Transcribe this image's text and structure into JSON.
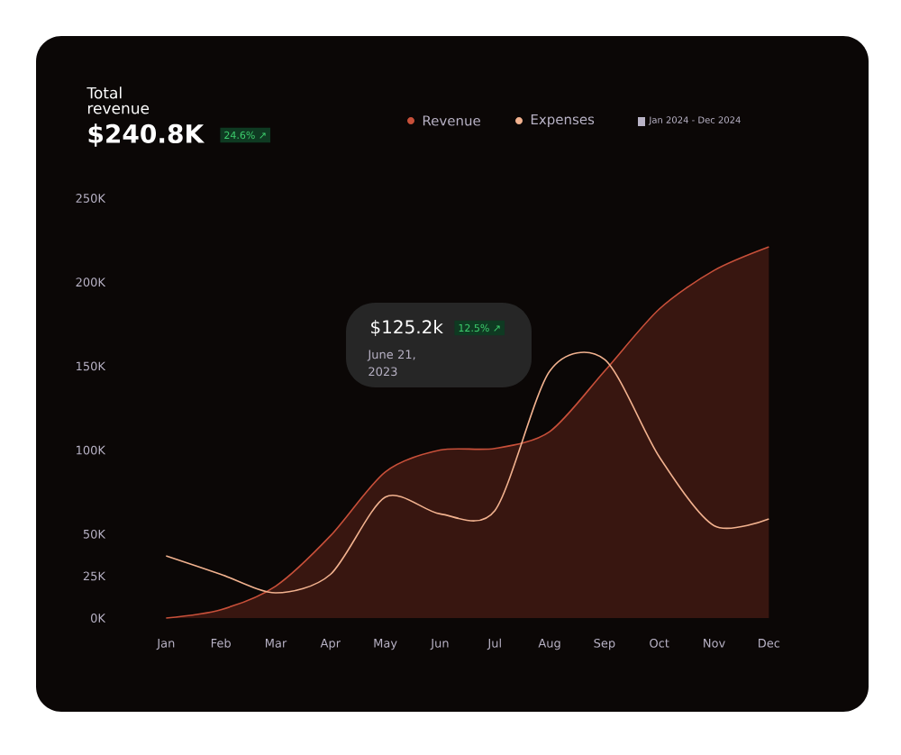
{
  "chart_data": {
    "type": "line",
    "title": "Total revenue",
    "subtitle": "$240.8K",
    "annotations": [
      "24.6% ↗",
      "$125.2k",
      "12.5% ↗",
      "June 21, 2023",
      "Jan 2024 - Dec 2024"
    ],
    "categories": [
      "Jan",
      "Feb",
      "Mar",
      "Apr",
      "May",
      "Jun",
      "Jul",
      "Aug",
      "Sep",
      "Oct",
      "Nov",
      "Dec"
    ],
    "series": [
      {
        "name": "Revenue",
        "type": "area",
        "color": "#c8503a",
        "values": [
          0,
          5,
          19,
          49,
          87,
          100,
          101,
          111,
          147,
          184,
          207,
          221
        ]
      },
      {
        "name": "Expenses",
        "color": "#f2b28f",
        "values": [
          37,
          26,
          15,
          26,
          72,
          62,
          64,
          147,
          154,
          96,
          55,
          59
        ]
      }
    ],
    "ylim": [
      0,
      250
    ],
    "yticks": [
      {
        "value": 0,
        "label": "0K"
      },
      {
        "value": 25,
        "label": "25K"
      },
      {
        "value": 50,
        "label": "50K"
      },
      {
        "value": 100,
        "label": "100K"
      },
      {
        "value": 150,
        "label": "150K"
      },
      {
        "value": 200,
        "label": "200K"
      },
      {
        "value": 250,
        "label": "250K"
      }
    ],
    "legend": "top"
  }
}
